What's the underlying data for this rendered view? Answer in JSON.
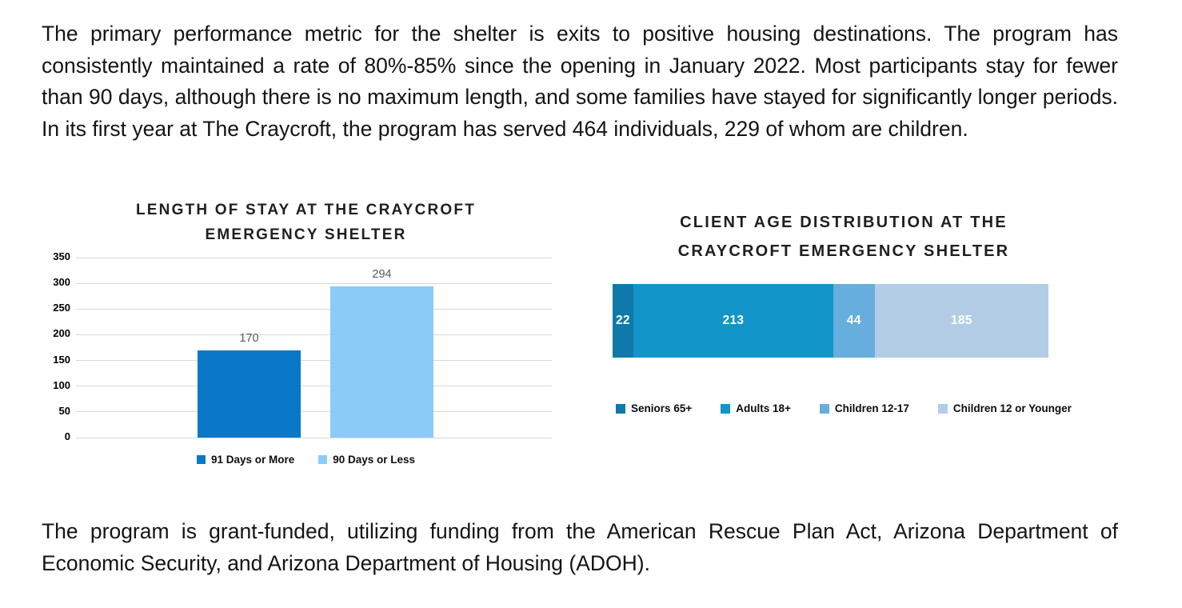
{
  "page": {
    "paragraph1": "The primary performance metric for the shelter is exits to positive housing destinations. The program has consistently maintained a rate of 80%-85% since the opening in January 2022. Most participants stay for fewer than 90 days, although there is no maximum length, and some families have stayed for significantly longer periods. In its first year at The Craycroft, the program has served 464 individuals, 229 of whom are children.",
    "paragraph2": "The program is grant-funded, utilizing funding from the American Rescue Plan Act, Arizona Department of Economic Security, and Arizona Department of Housing (ADOH)."
  },
  "chart_data": [
    {
      "type": "bar",
      "title": "LENGTH OF STAY AT THE CRAYCROFT EMERGENCY SHELTER",
      "title_line1": "LENGTH OF STAY AT THE CRAYCROFT",
      "title_line2": "EMERGENCY SHELTER",
      "categories": [
        "91 Days or More",
        "90 Days or Less"
      ],
      "values": [
        170,
        294
      ],
      "value_labels": [
        "170",
        "294"
      ],
      "colors": [
        "#0a78c8",
        "#8bcbf8"
      ],
      "ylim": [
        0,
        350
      ],
      "yticks": [
        350,
        300,
        250,
        200,
        150,
        100,
        50,
        0
      ],
      "grid": true,
      "legend_position": "bottom",
      "legend": [
        {
          "label": "91 Days or More",
          "color": "#0a78c8"
        },
        {
          "label": "90 Days or Less",
          "color": "#8bcbf8"
        }
      ]
    },
    {
      "type": "stacked-bar-horizontal",
      "title": "CLIENT AGE DISTRIBUTION AT THE CRAYCROFT EMERGENCY SHELTER",
      "title_line1": "CLIENT AGE DISTRIBUTION AT THE",
      "title_line2": "CRAYCROFT EMERGENCY SHELTER",
      "total": 464,
      "legend_position": "bottom",
      "segments": [
        {
          "label": "Seniors 65+",
          "value": 22,
          "value_label": "22",
          "color": "#0f7aa9"
        },
        {
          "label": "Adults 18+",
          "value": 213,
          "value_label": "213",
          "color": "#1295c9"
        },
        {
          "label": "Children 12-17",
          "value": 44,
          "value_label": "44",
          "color": "#66aedd"
        },
        {
          "label": "Children 12 or Younger",
          "value": 185,
          "value_label": "185",
          "color": "#b3cde6"
        }
      ]
    }
  ]
}
